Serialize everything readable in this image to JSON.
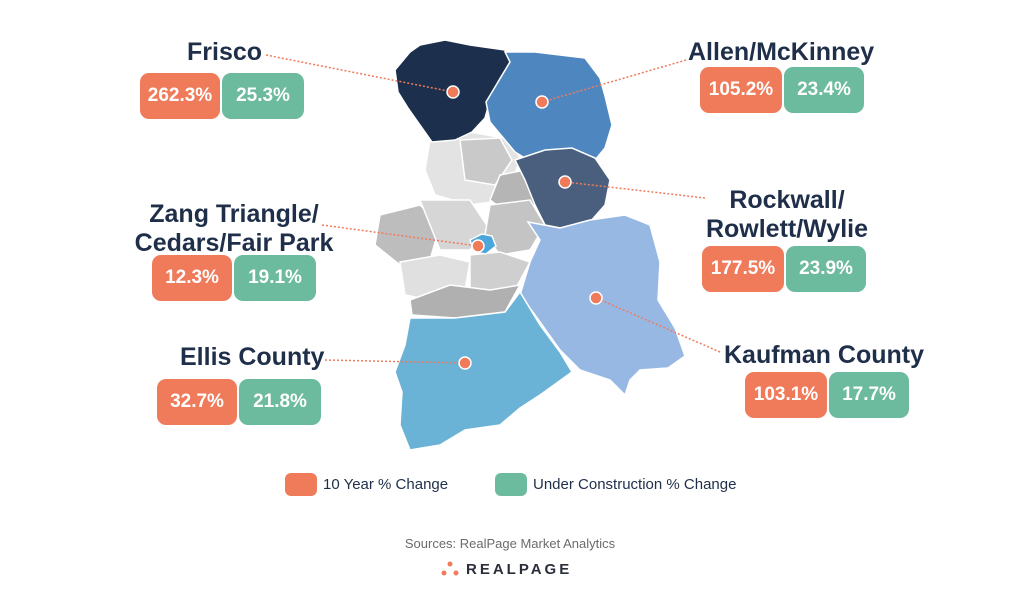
{
  "regions": [
    {
      "id": "frisco",
      "name": "Frisco",
      "ten_year": "262.3%",
      "under_construction": "25.3%",
      "color": "#1c2f4d"
    },
    {
      "id": "allen",
      "name": "Allen/McKinney",
      "ten_year": "105.2%",
      "under_construction": "23.4%",
      "color": "#4e87c0"
    },
    {
      "id": "rockwall",
      "name_line1": "Rockwall/",
      "name_line2": "Rowlett/Wylie",
      "ten_year": "177.5%",
      "under_construction": "23.9%",
      "color": "#4a5f7e"
    },
    {
      "id": "zang",
      "name_line1": "Zang Triangle/",
      "name_line2": "Cedars/Fair Park",
      "ten_year": "12.3%",
      "under_construction": "19.1%",
      "color": "#4aa6db"
    },
    {
      "id": "kaufman",
      "name": "Kaufman County",
      "ten_year": "103.1%",
      "under_construction": "17.7%",
      "color": "#98b8e4"
    },
    {
      "id": "ellis",
      "name": "Ellis County",
      "ten_year": "32.7%",
      "under_construction": "21.8%",
      "color": "#6ab2d6"
    }
  ],
  "legend": {
    "ten_year_label": "10 Year % Change",
    "ten_year_color": "#ef7b5b",
    "uc_label": "Under Construction % Change",
    "uc_color": "#6dbb9f"
  },
  "source": "Sources: RealPage Market Analytics",
  "brand": "REALPAGE"
}
